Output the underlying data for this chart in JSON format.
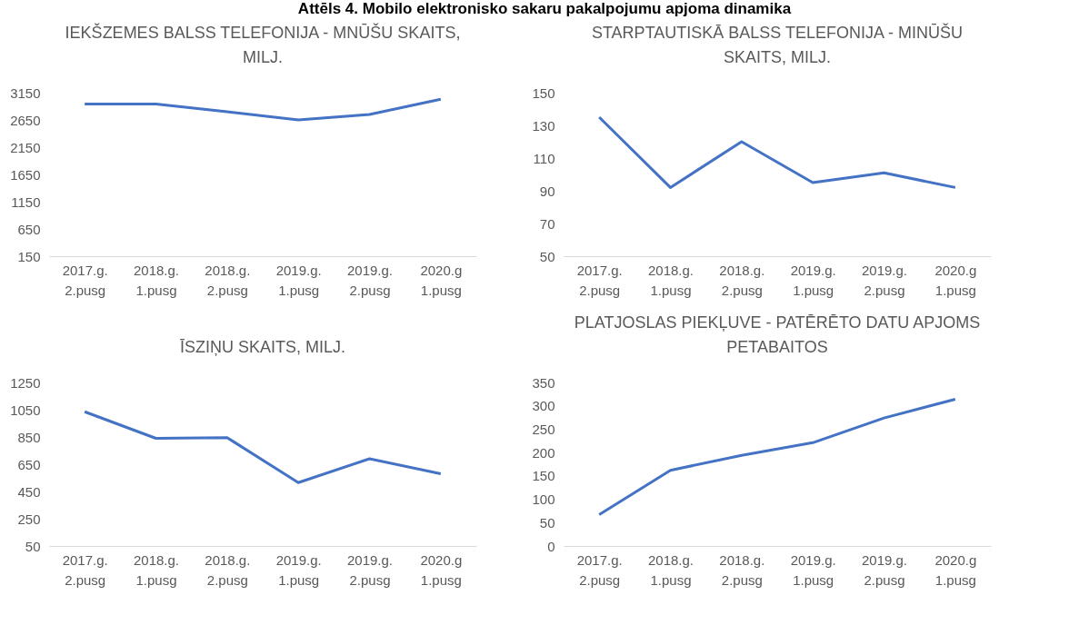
{
  "chart_data": [
    {
      "type": "line",
      "title": "IEKŠZEMES BALSS TELEFONIJA - MNŪŠU SKAITS, MILJ.",
      "annotations": [
        "Attēls 4. Mobilo elektronisko sakaru pakalpojumu apjoma dinamika"
      ],
      "categories": [
        "2017.g. 2.pusg",
        "2018.g. 1.pusg",
        "2018.g. 2.pusg",
        "2019.g. 1.pusg",
        "2019.g. 2.pusg",
        "2020.g 1.pusg"
      ],
      "series": [
        {
          "color": "#4472c4",
          "values": [
            2940,
            2940,
            2800,
            2650,
            2750,
            3030
          ]
        }
      ],
      "ylim": [
        150,
        3150
      ],
      "yticks": [
        150,
        650,
        1150,
        1650,
        2150,
        2650,
        3150
      ],
      "grid": false
    },
    {
      "type": "line",
      "title": "STARPTAUTISKĀ BALSS TELEFONIJA - MINŪŠU SKAITS, MILJ.",
      "categories": [
        "2017.g. 2.pusg",
        "2018.g. 1.pusg",
        "2018.g. 2.pusg",
        "2019.g. 1.pusg",
        "2019.g. 2.pusg",
        "2020.g 1.pusg"
      ],
      "series": [
        {
          "color": "#4472c4",
          "values": [
            135,
            92,
            120,
            95,
            101,
            92
          ]
        }
      ],
      "ylim": [
        50,
        150
      ],
      "yticks": [
        50,
        70,
        90,
        110,
        130,
        150
      ],
      "grid": false
    },
    {
      "type": "line",
      "title": "ĪSZIŅU SKAITS, MILJ.",
      "categories": [
        "2017.g. 2.pusg",
        "2018.g. 1.pusg",
        "2018.g. 2.pusg",
        "2019.g. 1.pusg",
        "2019.g. 2.pusg",
        "2020.g 1.pusg"
      ],
      "series": [
        {
          "color": "#4472c4",
          "values": [
            1035,
            840,
            845,
            515,
            690,
            580
          ]
        }
      ],
      "ylim": [
        50,
        1250
      ],
      "yticks": [
        50,
        250,
        450,
        650,
        850,
        1050,
        1250
      ],
      "grid": false
    },
    {
      "type": "line",
      "title": "PLATJOSLAS PIEKĻUVE - PATĒRĒTO DATU APJOMS PETABAITOS",
      "categories": [
        "2017.g. 2.pusg",
        "2018.g. 1.pusg",
        "2018.g. 2.pusg",
        "2019.g. 1.pusg",
        "2019.g. 2.pusg",
        "2020.g 1.pusg"
      ],
      "series": [
        {
          "color": "#4472c4",
          "values": [
            67,
            162,
            194,
            221,
            274,
            314
          ]
        }
      ],
      "ylim": [
        0,
        350
      ],
      "yticks": [
        0,
        50,
        100,
        150,
        200,
        250,
        300,
        350
      ],
      "grid": false
    }
  ]
}
